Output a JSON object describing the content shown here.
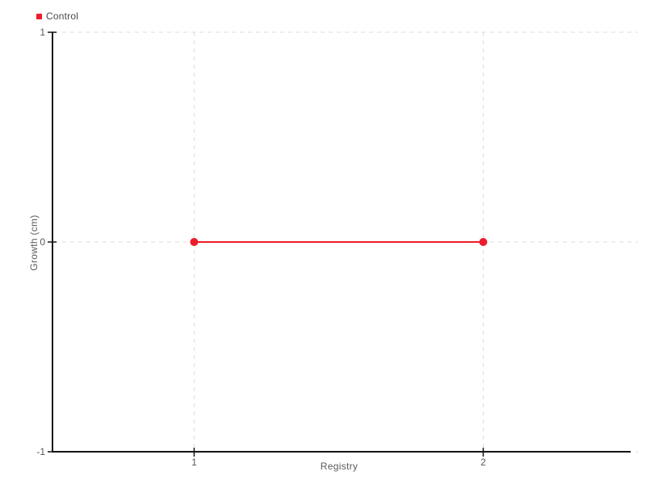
{
  "legend": {
    "items": [
      {
        "label": "Control",
        "color": "#ed1c2b"
      }
    ]
  },
  "chart_data": {
    "type": "line",
    "title": "",
    "xlabel": "Registry",
    "ylabel": "Growth (cm)",
    "series": [
      {
        "name": "Control",
        "color": "#ed1c2b",
        "x": [
          1,
          2
        ],
        "y": [
          0,
          0
        ]
      }
    ],
    "xticks": [
      1,
      2
    ],
    "yticks": [
      -1,
      0,
      1
    ],
    "xlim": [
      0.51,
      2.51
    ],
    "ylim": [
      -1,
      1
    ],
    "grid": "dashed",
    "legend_position": "top-left",
    "colors": {
      "accent": "#ed1c2b",
      "axis": "#141414",
      "grid": "#dedede",
      "text": "#595959"
    }
  }
}
